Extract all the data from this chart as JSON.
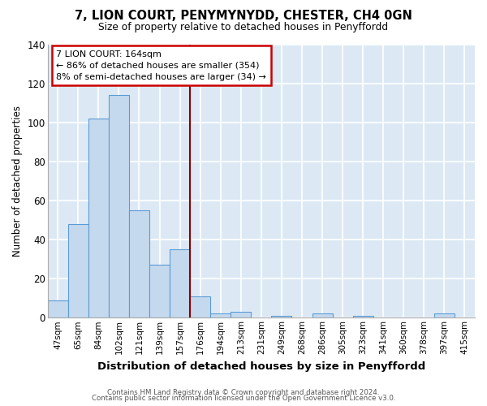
{
  "title": "7, LION COURT, PENYMYNYDD, CHESTER, CH4 0GN",
  "subtitle": "Size of property relative to detached houses in Penyffordd",
  "xlabel": "Distribution of detached houses by size in Penyffordd",
  "ylabel": "Number of detached properties",
  "categories": [
    "47sqm",
    "65sqm",
    "84sqm",
    "102sqm",
    "121sqm",
    "139sqm",
    "157sqm",
    "176sqm",
    "194sqm",
    "213sqm",
    "231sqm",
    "249sqm",
    "268sqm",
    "286sqm",
    "305sqm",
    "323sqm",
    "341sqm",
    "360sqm",
    "378sqm",
    "397sqm",
    "415sqm"
  ],
  "values": [
    9,
    48,
    102,
    114,
    55,
    27,
    35,
    11,
    2,
    3,
    0,
    1,
    0,
    2,
    0,
    1,
    0,
    0,
    0,
    2,
    0
  ],
  "bar_color": "#c5d9ee",
  "bar_edge_color": "#5b9bd5",
  "vline_color": "#8b0000",
  "vline_x_index": 6.5,
  "annotation_title": "7 LION COURT: 164sqm",
  "annotation_line1": "← 86% of detached houses are smaller (354)",
  "annotation_line2": "8% of semi-detached houses are larger (34) →",
  "annotation_box_color": "#ffffff",
  "annotation_box_edge": "#cc0000",
  "ylim": [
    0,
    140
  ],
  "yticks": [
    0,
    20,
    40,
    60,
    80,
    100,
    120,
    140
  ],
  "fig_bg_color": "#ffffff",
  "plot_bg_color": "#dce9f5",
  "footer1": "Contains HM Land Registry data © Crown copyright and database right 2024.",
  "footer2": "Contains public sector information licensed under the Open Government Licence v3.0."
}
